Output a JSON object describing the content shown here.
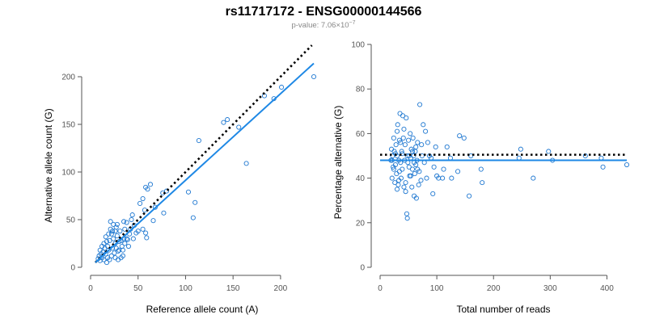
{
  "header": {
    "title": "rs11717172 - ENSG00000144566",
    "pvalue_prefix": "p-value: 7.06×10",
    "pvalue_exp": "−7"
  },
  "colors": {
    "points": "#1f78d1",
    "fit_line": "#1e88e5",
    "reference_line": "#000000",
    "axis": "#555555"
  },
  "chart_data": [
    {
      "type": "scatter",
      "xlabel": "Reference allele count (A)",
      "ylabel": "Alternative allele count (G)",
      "xlim": [
        0,
        235
      ],
      "ylim": [
        0,
        200
      ],
      "xticks": [
        0,
        50,
        100,
        150,
        200
      ],
      "yticks": [
        0,
        50,
        100,
        150,
        200
      ],
      "fit_line": {
        "x0": 5,
        "y0": 5,
        "x1": 235,
        "y1": 214
      },
      "reference_line": {
        "x0": 5,
        "y0": 5,
        "x1": 233,
        "y1": 233
      },
      "points": [
        [
          235,
          200
        ],
        [
          201,
          189
        ],
        [
          193,
          177
        ],
        [
          183,
          180
        ],
        [
          156,
          147
        ],
        [
          164,
          109
        ],
        [
          144,
          155
        ],
        [
          140,
          152
        ],
        [
          114,
          133
        ],
        [
          108,
          52
        ],
        [
          110,
          68
        ],
        [
          103,
          79
        ],
        [
          80,
          80
        ],
        [
          76,
          78
        ],
        [
          77,
          57
        ],
        [
          68,
          63
        ],
        [
          66,
          49
        ],
        [
          63,
          87
        ],
        [
          60,
          82
        ],
        [
          58,
          84
        ],
        [
          57,
          60
        ],
        [
          55,
          72
        ],
        [
          52,
          67
        ],
        [
          55,
          40
        ],
        [
          58,
          36
        ],
        [
          59,
          31
        ],
        [
          50,
          38
        ],
        [
          46,
          44
        ],
        [
          44,
          55
        ],
        [
          43,
          50
        ],
        [
          41,
          35
        ],
        [
          39,
          29
        ],
        [
          38,
          47
        ],
        [
          36,
          40
        ],
        [
          35,
          30
        ],
        [
          33,
          22
        ],
        [
          32,
          10
        ],
        [
          34,
          12
        ],
        [
          35,
          48
        ],
        [
          31,
          38
        ],
        [
          30,
          27
        ],
        [
          29,
          17
        ],
        [
          28,
          33
        ],
        [
          27,
          42
        ],
        [
          26,
          25
        ],
        [
          25,
          15
        ],
        [
          24,
          30
        ],
        [
          23,
          20
        ],
        [
          22,
          12
        ],
        [
          22,
          35
        ],
        [
          21,
          40
        ],
        [
          21,
          48
        ],
        [
          20,
          28
        ],
        [
          19,
          18
        ],
        [
          18,
          22
        ],
        [
          18,
          10
        ],
        [
          17,
          27
        ],
        [
          16,
          14
        ],
        [
          16,
          32
        ],
        [
          15,
          20
        ],
        [
          14,
          8
        ],
        [
          14,
          25
        ],
        [
          13,
          16
        ],
        [
          12,
          10
        ],
        [
          12,
          22
        ],
        [
          11,
          14
        ],
        [
          10,
          18
        ],
        [
          10,
          7
        ],
        [
          9,
          12
        ],
        [
          8,
          9
        ],
        [
          24,
          45
        ],
        [
          26,
          38
        ],
        [
          28,
          45
        ],
        [
          30,
          18
        ],
        [
          32,
          28
        ],
        [
          34,
          18
        ],
        [
          36,
          25
        ],
        [
          38,
          30
        ],
        [
          40,
          22
        ],
        [
          42,
          40
        ],
        [
          45,
          30
        ],
        [
          48,
          36
        ],
        [
          26,
          10
        ],
        [
          20,
          8
        ],
        [
          17,
          5
        ],
        [
          23,
          38
        ],
        [
          19,
          35
        ],
        [
          27,
          20
        ],
        [
          29,
          8
        ]
      ]
    },
    {
      "type": "scatter",
      "xlabel": "Total number of reads",
      "ylabel": "Percentage alternative (G)",
      "xlim": [
        0,
        435
      ],
      "ylim": [
        0,
        100
      ],
      "xticks": [
        0,
        100,
        200,
        300,
        400
      ],
      "yticks": [
        0,
        20,
        40,
        60,
        80,
        100
      ],
      "fit_line": {
        "x0": 0,
        "y0": 48,
        "x1": 435,
        "y1": 48
      },
      "reference_line": {
        "x0": 0,
        "y0": 50.5,
        "x1": 435,
        "y1": 50.5
      },
      "points": [
        [
          435,
          46
        ],
        [
          393,
          45
        ],
        [
          390,
          49
        ],
        [
          362,
          50
        ],
        [
          304,
          48
        ],
        [
          297,
          52
        ],
        [
          270,
          40
        ],
        [
          248,
          53
        ],
        [
          245,
          49
        ],
        [
          180,
          38
        ],
        [
          178,
          44
        ],
        [
          160,
          50
        ],
        [
          157,
          32
        ],
        [
          148,
          58
        ],
        [
          140,
          59
        ],
        [
          137,
          43
        ],
        [
          126,
          40
        ],
        [
          124,
          49
        ],
        [
          118,
          54
        ],
        [
          112,
          44
        ],
        [
          110,
          40
        ],
        [
          103,
          40
        ],
        [
          100,
          41
        ],
        [
          98,
          54
        ],
        [
          95,
          45
        ],
        [
          93,
          33
        ],
        [
          90,
          49
        ],
        [
          87,
          50
        ],
        [
          84,
          56
        ],
        [
          82,
          40
        ],
        [
          80,
          61
        ],
        [
          78,
          47
        ],
        [
          76,
          64
        ],
        [
          74,
          50
        ],
        [
          73,
          55
        ],
        [
          72,
          39
        ],
        [
          70,
          73
        ],
        [
          69,
          43
        ],
        [
          68,
          37
        ],
        [
          66,
          56
        ],
        [
          65,
          48
        ],
        [
          64,
          31
        ],
        [
          63,
          46
        ],
        [
          62,
          52
        ],
        [
          61,
          42
        ],
        [
          60,
          32
        ],
        [
          59,
          50
        ],
        [
          58,
          58
        ],
        [
          57,
          44
        ],
        [
          56,
          36
        ],
        [
          55,
          53
        ],
        [
          54,
          49
        ],
        [
          53,
          60
        ],
        [
          52,
          41
        ],
        [
          51,
          50
        ],
        [
          50,
          57
        ],
        [
          49,
          47
        ],
        [
          48,
          22
        ],
        [
          47,
          24
        ],
        [
          46,
          67
        ],
        [
          45,
          38
        ],
        [
          44,
          55
        ],
        [
          43,
          48
        ],
        [
          42,
          36
        ],
        [
          41,
          58
        ],
        [
          40,
          68
        ],
        [
          39,
          44
        ],
        [
          38,
          52
        ],
        [
          37,
          40
        ],
        [
          36,
          56
        ],
        [
          35,
          69
        ],
        [
          34,
          43
        ],
        [
          33,
          48
        ],
        [
          32,
          37
        ],
        [
          31,
          64
        ],
        [
          30,
          50
        ],
        [
          29,
          42
        ],
        [
          28,
          55
        ],
        [
          27,
          46
        ],
        [
          26,
          38
        ],
        [
          25,
          52
        ],
        [
          24,
          58
        ],
        [
          23,
          45
        ],
        [
          22,
          50
        ],
        [
          21,
          40
        ],
        [
          20,
          53
        ],
        [
          19,
          48
        ],
        [
          30,
          61
        ],
        [
          33,
          39
        ],
        [
          36,
          47
        ],
        [
          39,
          51
        ],
        [
          42,
          62
        ],
        [
          45,
          34
        ],
        [
          48,
          50
        ],
        [
          51,
          45
        ],
        [
          54,
          41
        ],
        [
          57,
          52
        ],
        [
          60,
          47
        ],
        [
          63,
          54
        ],
        [
          66,
          44
        ],
        [
          21,
          48
        ],
        [
          24,
          44
        ],
        [
          27,
          51
        ],
        [
          30,
          35
        ],
        [
          34,
          57
        ]
      ]
    }
  ]
}
